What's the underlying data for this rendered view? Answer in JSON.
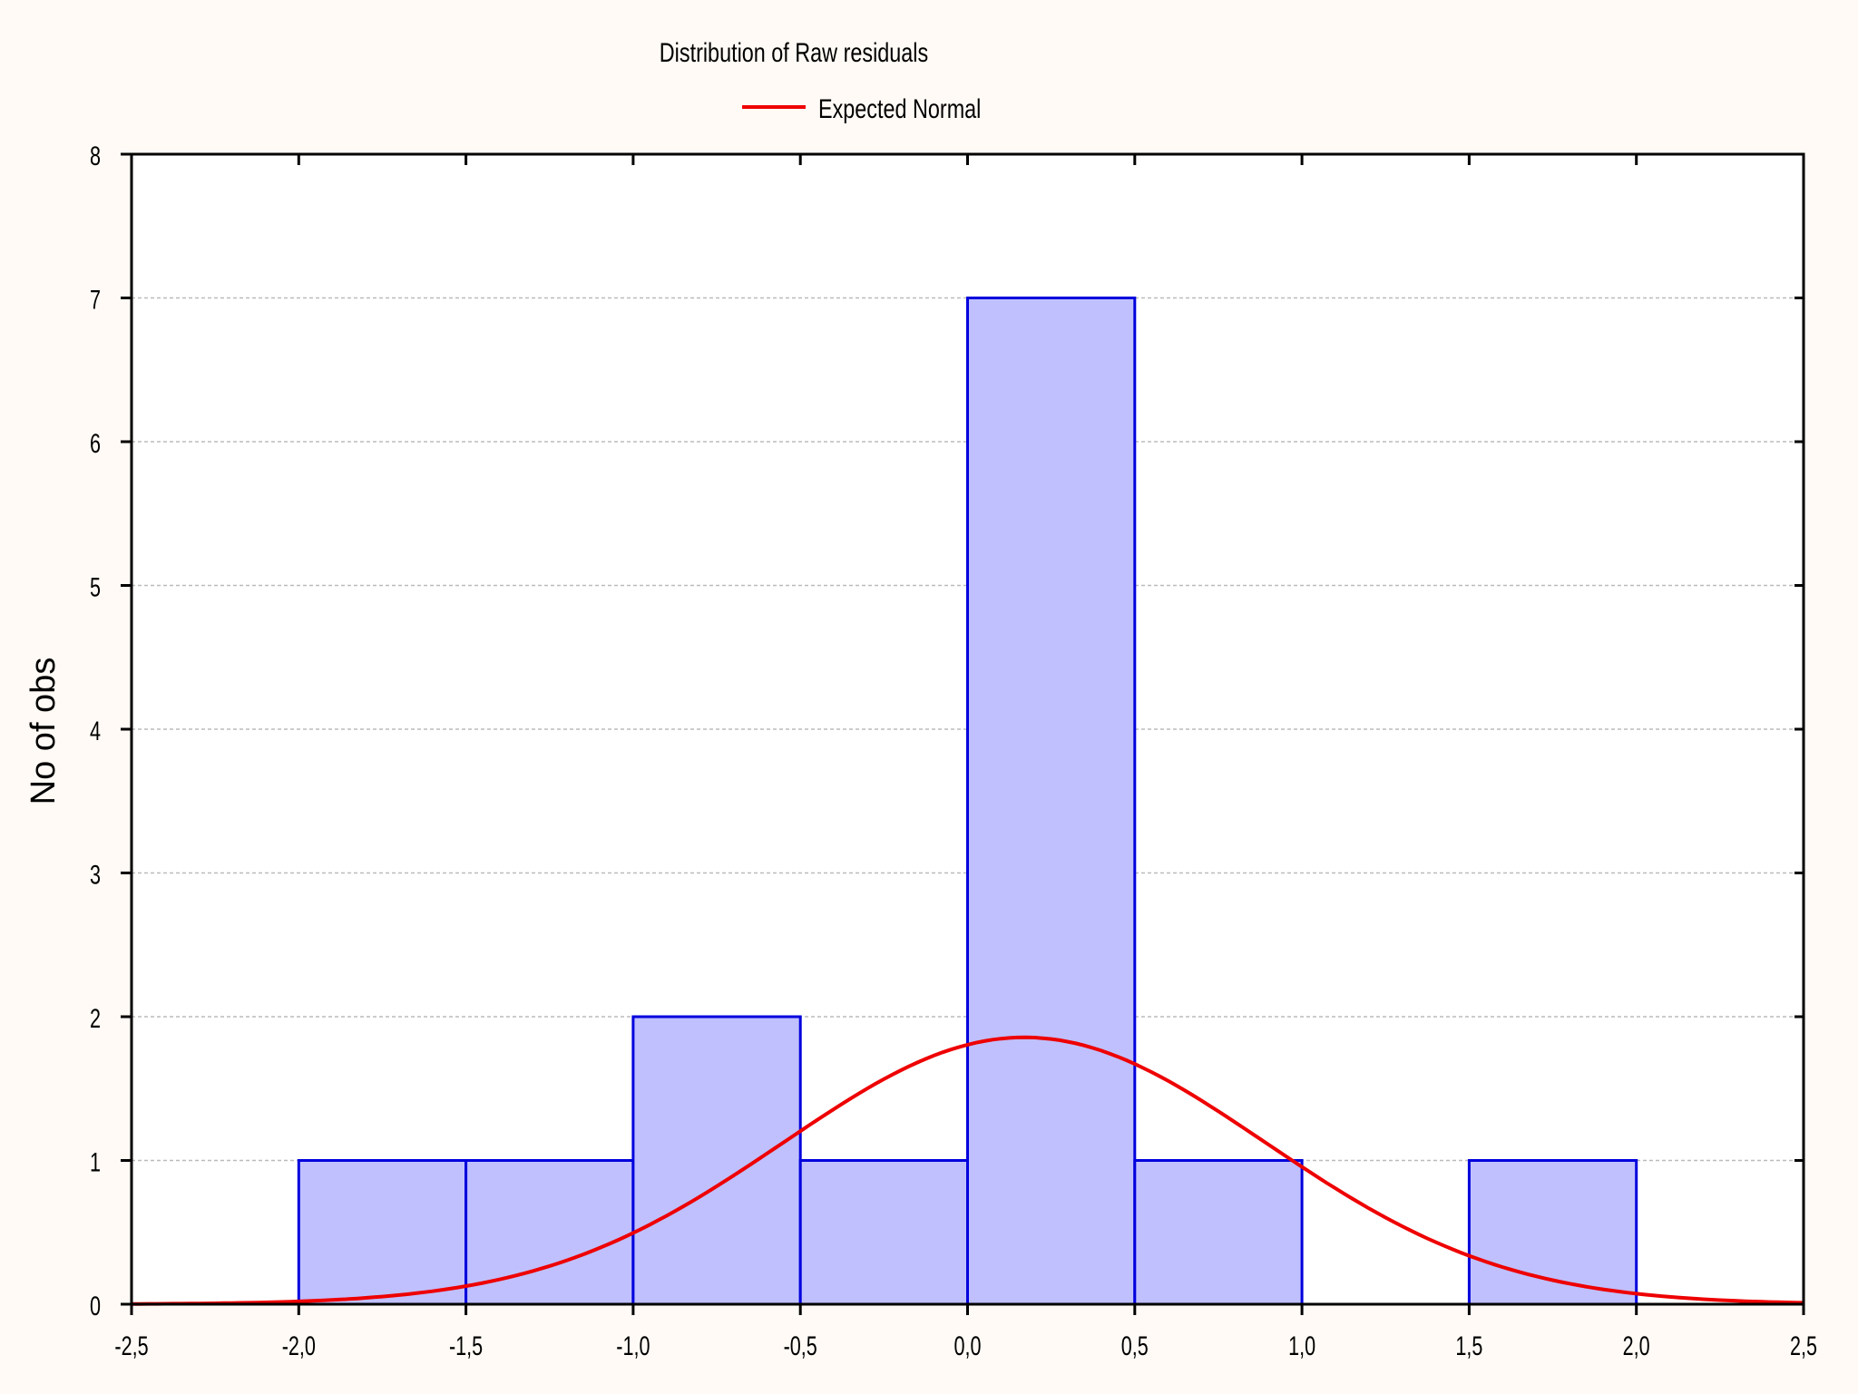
{
  "chart_data": {
    "type": "bar",
    "title": "Distribution of Raw residuals",
    "xlabel": "",
    "ylabel": "No of obs",
    "xlim": [
      -2.5,
      2.5
    ],
    "ylim": [
      0,
      8
    ],
    "x_ticks": [
      "-2,5",
      "-2,0",
      "-1,5",
      "-1,0",
      "-0,5",
      "0,0",
      "0,5",
      "1,0",
      "1,5",
      "2,0",
      "2,5"
    ],
    "y_ticks": [
      "0",
      "1",
      "2",
      "3",
      "4",
      "5",
      "6",
      "7",
      "8"
    ],
    "grid": true,
    "bins": [
      {
        "start": -2.0,
        "end": -1.5,
        "count": 1
      },
      {
        "start": -1.5,
        "end": -1.0,
        "count": 1
      },
      {
        "start": -1.0,
        "end": -0.5,
        "count": 2
      },
      {
        "start": -0.5,
        "end": 0.0,
        "count": 1
      },
      {
        "start": 0.0,
        "end": 0.5,
        "count": 7
      },
      {
        "start": 0.5,
        "end": 1.0,
        "count": 1
      },
      {
        "start": 1.0,
        "end": 1.5,
        "count": 0
      },
      {
        "start": 1.5,
        "end": 2.0,
        "count": 1
      }
    ],
    "series": [
      {
        "name": "Expected Normal",
        "type": "line",
        "mean": 0.17,
        "sd": 0.72,
        "scale": 6.7,
        "x_range": [
          -2.5,
          2.5
        ]
      }
    ],
    "legend_position": "top-center",
    "colors": {
      "bar_fill": "#c0c0ff",
      "bar_stroke": "#0000dd",
      "curve": "#ee0000",
      "grid": "#bbbbbb",
      "background": "#fffaf5",
      "plot_background": "#ffffff"
    }
  }
}
